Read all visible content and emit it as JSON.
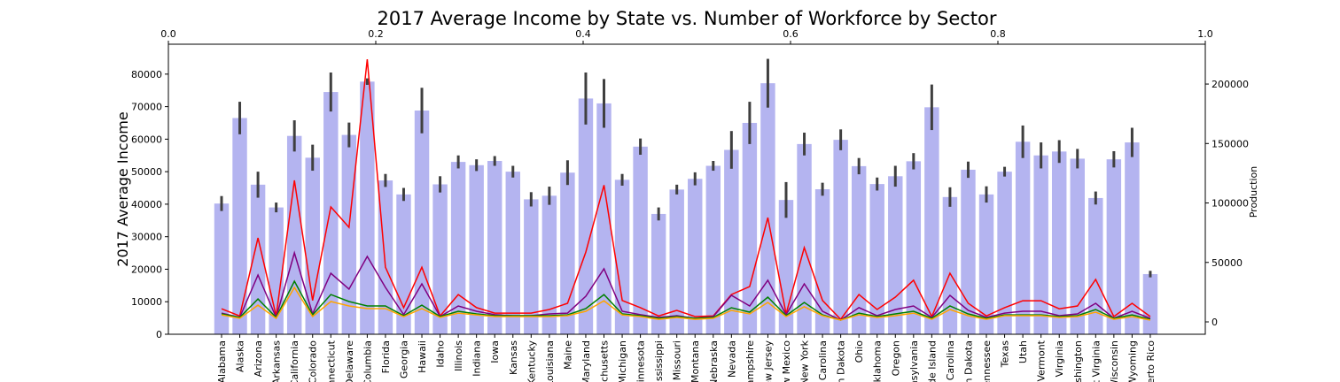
{
  "chart_data": {
    "type": "bar",
    "title": "2017 Average Income by State vs. Number of Workforce by Sector",
    "ylabel": "2017 Average Income",
    "y2label": "Production",
    "categories": [
      "Alabama",
      "Alaska",
      "Arizona",
      "Arkansas",
      "California",
      "Colorado",
      "nnecticut",
      "Delaware",
      "Columbia",
      "Florida",
      "Georgia",
      "Hawaii",
      "Idaho",
      "Illinois",
      "Indiana",
      "Iowa",
      "Kansas",
      "Kentucky",
      "Louisiana",
      "Maine",
      "Maryland",
      "ssachusetts",
      "Michigan",
      "Minnesota",
      "ississippi",
      "Missouri",
      "Montana",
      "Nebraska",
      "Nevada",
      "ampshire",
      "ew Jersey",
      "ew Mexico",
      "New York",
      "h Carolina",
      "h Dakota",
      "Ohio",
      "klahoma",
      "Oregon",
      "nsylvania",
      "de Island",
      "n Carolina",
      "h Dakota",
      "ennessee",
      "Texas",
      "Utah",
      "Vermont",
      "Virginia",
      "ashington",
      "t Virginia",
      "Wisconsin",
      "Wyoming",
      "erto Rico"
    ],
    "bars": {
      "color": "#b4b4f0",
      "error_color": "#3f3f3f",
      "values": [
        40200,
        66500,
        46000,
        39000,
        61000,
        54300,
        74500,
        61300,
        77700,
        47300,
        43000,
        68800,
        46100,
        53000,
        52000,
        53300,
        50000,
        41500,
        42600,
        49700,
        72500,
        71000,
        47500,
        57700,
        37000,
        44500,
        47800,
        51800,
        56700,
        65000,
        77200,
        41300,
        58500,
        44600,
        59800,
        51700,
        46200,
        48600,
        53200,
        69800,
        42200,
        50600,
        43000,
        50000,
        59200,
        55000,
        56200,
        54000,
        41900,
        53800,
        59000,
        18500
      ],
      "errors": [
        2300,
        5000,
        4000,
        1500,
        4800,
        4000,
        6000,
        3800,
        1000,
        2000,
        2000,
        7000,
        2500,
        2000,
        1800,
        1500,
        1800,
        2200,
        2800,
        3800,
        8000,
        7500,
        1800,
        2500,
        2000,
        1500,
        2000,
        1500,
        5800,
        6500,
        7500,
        5500,
        3500,
        2000,
        3200,
        2500,
        2000,
        3200,
        2500,
        7000,
        3000,
        2500,
        2500,
        1500,
        5000,
        4000,
        3500,
        3000,
        2000,
        2500,
        4500,
        1000
      ]
    },
    "lines": [
      {
        "color": "red",
        "axis": "y2",
        "values": [
          11000,
          5000,
          70600,
          5000,
          119000,
          18000,
          96700,
          79500,
          220800,
          46000,
          12000,
          46000,
          5000,
          23000,
          12000,
          7400,
          7400,
          7400,
          10400,
          15600,
          58700,
          115000,
          18000,
          12000,
          5000,
          9700,
          4500,
          5000,
          23000,
          29700,
          87700,
          6700,
          62500,
          18000,
          2200,
          23000,
          10400,
          20800,
          35000,
          4500,
          40900,
          15600,
          5000,
          12000,
          17800,
          17800,
          11000,
          13400,
          35700,
          4500,
          15600,
          4500
        ]
      },
      {
        "color": "purple",
        "axis": "y2",
        "values": [
          7400,
          3700,
          39400,
          3700,
          58000,
          6700,
          40900,
          27500,
          55000,
          29000,
          6000,
          32000,
          4500,
          13400,
          8900,
          6000,
          5200,
          5200,
          6700,
          7400,
          21600,
          44600,
          8900,
          6000,
          3700,
          5200,
          3000,
          4500,
          22300,
          13400,
          35000,
          6000,
          32000,
          8900,
          1500,
          12000,
          5200,
          10400,
          13400,
          3700,
          22300,
          9700,
          3700,
          7400,
          8900,
          8900,
          5200,
          6700,
          15600,
          3000,
          8900,
          3000
        ]
      },
      {
        "color": "green",
        "axis": "y2",
        "values": [
          6700,
          3700,
          19300,
          3700,
          34200,
          5900,
          23000,
          17100,
          13400,
          13400,
          5200,
          14100,
          4500,
          8900,
          6700,
          5200,
          5200,
          5200,
          5200,
          5900,
          11200,
          23000,
          6700,
          5200,
          3000,
          4500,
          3000,
          3700,
          11900,
          8200,
          20800,
          5200,
          16400,
          5900,
          1500,
          7400,
          4500,
          6700,
          8900,
          3000,
          13400,
          6700,
          3000,
          5900,
          5900,
          5900,
          4500,
          5200,
          10400,
          3000,
          5900,
          2200
        ]
      },
      {
        "color": "orange",
        "axis": "y2",
        "values": [
          5900,
          3000,
          14100,
          3000,
          28900,
          4500,
          17100,
          13400,
          11200,
          11200,
          4500,
          11200,
          3700,
          7400,
          5900,
          4500,
          4500,
          4500,
          4500,
          5200,
          8900,
          17800,
          5900,
          4500,
          2200,
          3700,
          2200,
          3000,
          9700,
          6700,
          16400,
          4500,
          12700,
          5200,
          1500,
          6000,
          3700,
          5200,
          7400,
          2200,
          10400,
          5200,
          2200,
          5200,
          5200,
          5200,
          3700,
          4500,
          8200,
          2200,
          4500,
          1500
        ]
      }
    ],
    "ylim": [
      0,
      89200
    ],
    "yticks": [
      0,
      10000,
      20000,
      30000,
      40000,
      50000,
      60000,
      70000,
      80000
    ],
    "y2lim": [
      -10400,
      233500
    ],
    "y2ticks": [
      0,
      50000,
      100000,
      150000,
      200000
    ],
    "x2lim": [
      0,
      1
    ],
    "x2ticks": [
      {
        "value": 0,
        "label": "0.0"
      },
      {
        "value": 0.2,
        "label": "0.2"
      },
      {
        "value": 0.4,
        "label": "0.4"
      },
      {
        "value": 0.6,
        "label": "0.6"
      },
      {
        "value": 0.8,
        "label": "0.8"
      },
      {
        "value": 1,
        "label": "1.0"
      }
    ]
  }
}
